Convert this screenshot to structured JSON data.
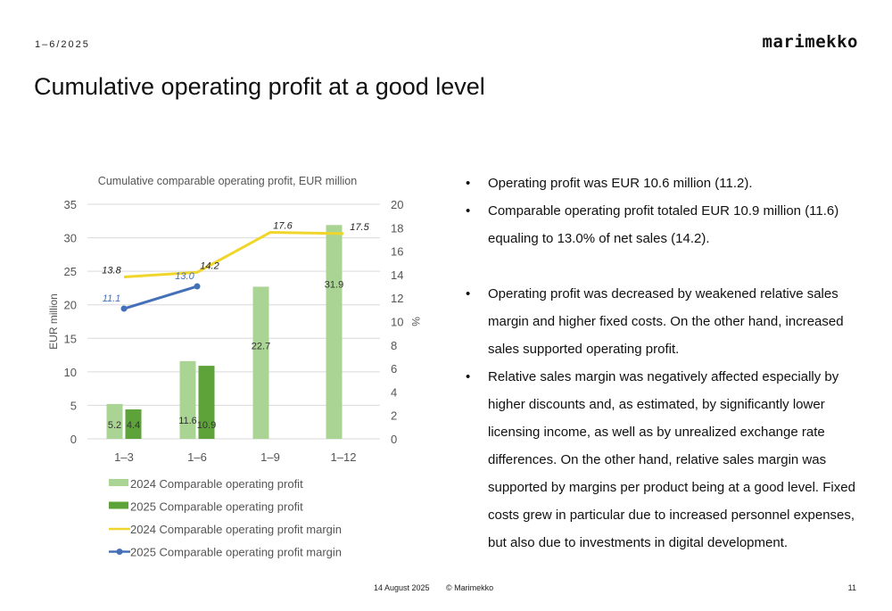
{
  "header": {
    "period": "1–6/2025",
    "logo": "marimekko"
  },
  "title": "Cumulative operating profit at a good level",
  "footer": {
    "date": "14 August 2025",
    "copyright": "© Marimekko",
    "page": "11"
  },
  "bullets": [
    "Operating profit was EUR 10.6 million (11.2).",
    "Comparable operating profit totaled EUR 10.9 million (11.6) equaling to 13.0% of net sales (14.2).",
    "Operating profit was decreased by weakened relative sales margin and higher fixed costs. On the other hand, increased sales supported operating profit.",
    "Relative sales margin was negatively affected especially by higher discounts and, as estimated, by significantly lower licensing income, as well as by unrealized exchange rate differences. On the other hand, relative sales margin was supported by margins per product being at a good level. Fixed costs grew in particular due to increased personnel expenses, but also due to investments in digital development."
  ],
  "chart_data": {
    "type": "bar",
    "title": "Cumulative comparable operating profit, EUR million",
    "ylabel": "EUR million",
    "y2label": "%",
    "categories": [
      "1–3",
      "1–6",
      "1–9",
      "1–12"
    ],
    "ylim": [
      0,
      35
    ],
    "yticks": [
      0,
      5,
      10,
      15,
      20,
      25,
      30,
      35
    ],
    "y2lim": [
      0,
      20
    ],
    "y2ticks": [
      0,
      2,
      4,
      6,
      8,
      10,
      12,
      14,
      16,
      18,
      20
    ],
    "grid": true,
    "legend_position": "bottom",
    "series": [
      {
        "name": "2024 Comparable operating profit",
        "kind": "bar",
        "axis": "left",
        "color": "#aad494",
        "values": [
          5.2,
          11.6,
          22.7,
          31.9
        ],
        "labels": [
          "5.2",
          "11.6",
          "22.7",
          "31.9"
        ]
      },
      {
        "name": "2025 Comparable operating profit",
        "kind": "bar",
        "axis": "left",
        "color": "#5ea33a",
        "values": [
          4.4,
          10.9,
          null,
          null
        ],
        "labels": [
          "4.4",
          "10.9",
          "",
          ""
        ]
      },
      {
        "name": "2024 Comparable operating profit margin",
        "kind": "line",
        "axis": "right",
        "color": "#f0d62a",
        "values": [
          13.8,
          14.2,
          17.6,
          17.5
        ],
        "labels": [
          "13.8",
          "14.2",
          "17.6",
          "17.5"
        ]
      },
      {
        "name": "2025 Comparable operating profit margin",
        "kind": "line-marker",
        "axis": "right",
        "color": "#4470b8",
        "values": [
          11.1,
          13.0,
          null,
          null
        ],
        "labels": [
          "11.1",
          "13.0",
          "",
          ""
        ]
      }
    ]
  }
}
